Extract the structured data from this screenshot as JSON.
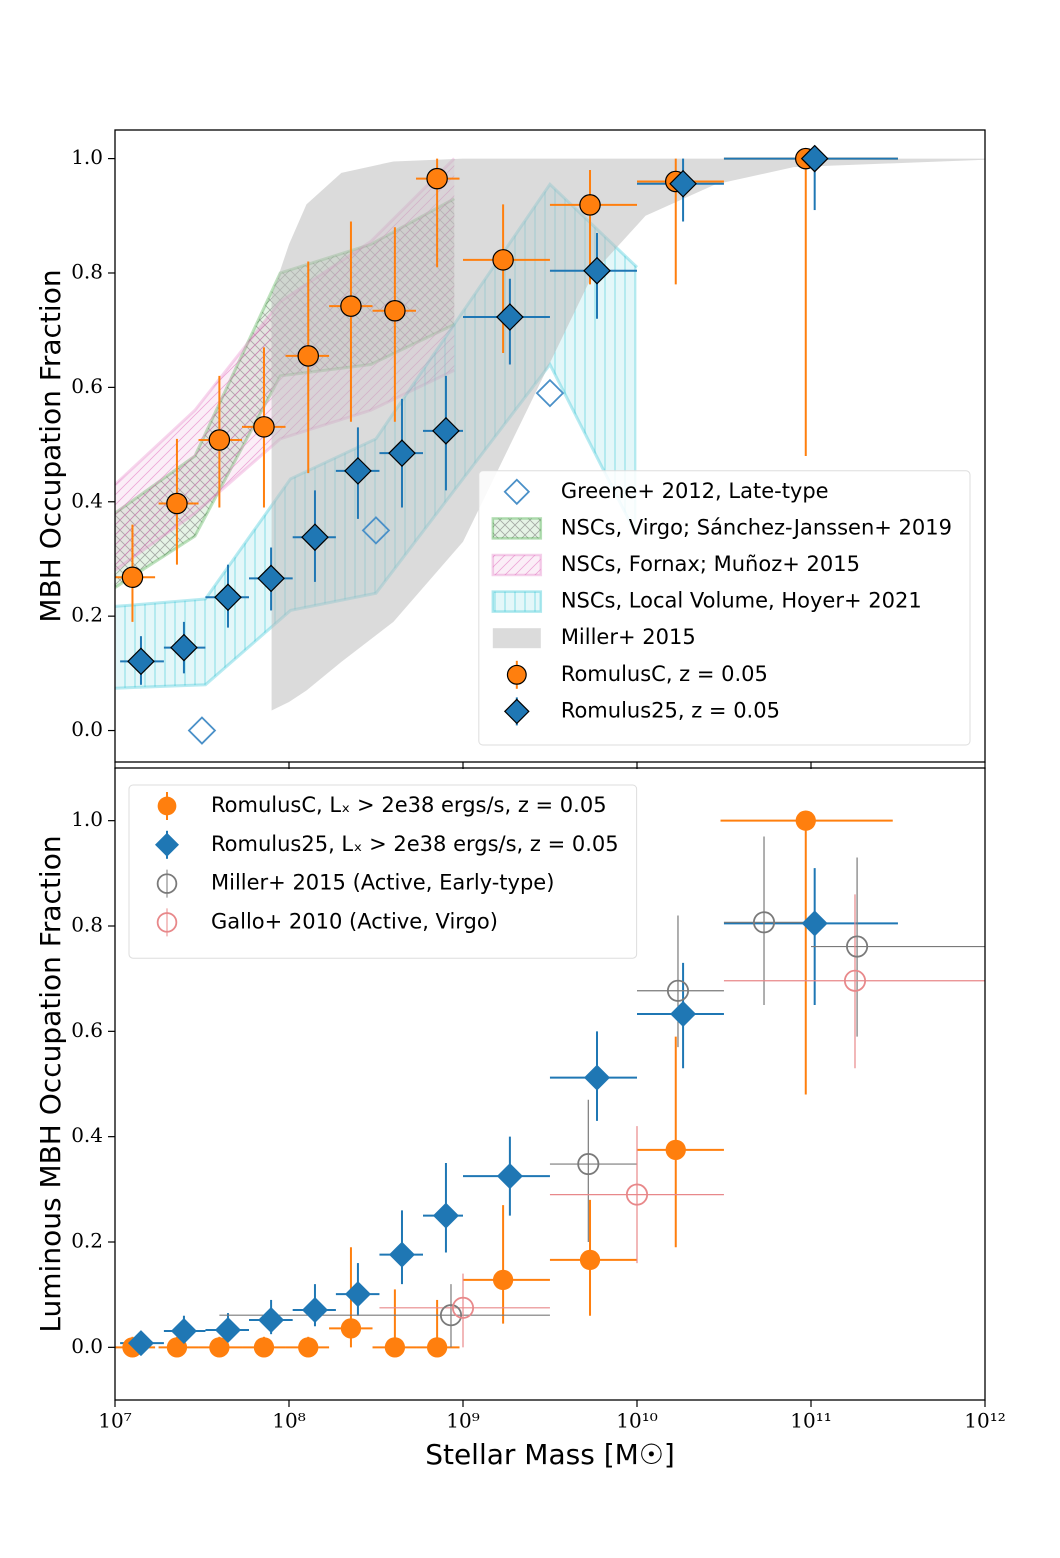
{
  "chart_data": [
    {
      "type": "scatter",
      "ylabel": "MBH Occupation Fraction",
      "xscale": "log",
      "xlim": [
        10000000.0,
        1000000000000.0
      ],
      "xticks": [
        10000000.0,
        100000000.0,
        1000000000.0,
        10000000000.0,
        100000000000.0,
        1000000000000.0
      ],
      "ylim": [
        -0.055,
        1.05
      ],
      "yticks": [
        {
          "value": 0,
          "label": "0.0"
        },
        0.2,
        0.4,
        0.6,
        0.8,
        {
          "value": 1,
          "label": "1.0"
        }
      ],
      "legend": "lower right",
      "series": [
        {
          "name": "Greene+ 2012, Late-type",
          "style": "points",
          "marker": "diamond",
          "filled": false,
          "color": "#4a90c8",
          "x": [
            31600000.0,
            316000000.0,
            3160000000.0
          ],
          "values": [
            0,
            0.35,
            0.59
          ]
        },
        {
          "name": "NSCs, Virgo; Sánchez-Janssen+ 2019",
          "style": "band",
          "hatch": "x",
          "color": "#2ca02c",
          "x": [
            10000000.0,
            28800000.0,
            89100000.0,
            295000000.0,
            891000000.0
          ],
          "lower": [
            0.25,
            0.34,
            0.62,
            0.64,
            0.71
          ],
          "upper": [
            0.38,
            0.48,
            0.8,
            0.85,
            0.93
          ]
        },
        {
          "name": "NSCs, Fornax; Muñoz+ 2015",
          "style": "band",
          "hatch": "/",
          "color": "#e377c2",
          "x": [
            10000000.0,
            28800000.0,
            89100000.0,
            295000000.0,
            891000000.0
          ],
          "lower": [
            0.28,
            0.38,
            0.51,
            0.56,
            0.63
          ],
          "upper": [
            0.43,
            0.56,
            0.75,
            0.855,
            1.0
          ]
        },
        {
          "name": "NSCs, Local Volume, Hoyer+ 2021",
          "style": "band",
          "hatch": "|",
          "color": "#17becf",
          "x": [
            10000000.0,
            33100000.0,
            102000000.0,
            316000000.0,
            3160000000.0,
            10000000000.0
          ],
          "lower": [
            0.074,
            0.08,
            0.21,
            0.24,
            0.64,
            0.34
          ],
          "upper": [
            0.217,
            0.23,
            0.44,
            0.51,
            0.955,
            0.81
          ]
        },
        {
          "name": "Miller+ 2015",
          "style": "band",
          "hatch": "",
          "color": "#bdbdbd",
          "x": [
            79400000.0,
            100000000.0,
            126000000.0,
            200000000.0,
            398000000.0,
            1000000000.0,
            2510000000.0,
            5620000000.0,
            11200000000.0,
            28200000000.0,
            79400000000.0,
            1000000000000.0
          ],
          "lower": [
            0.035,
            0.05,
            0.07,
            0.12,
            0.19,
            0.33,
            0.58,
            0.8,
            0.9,
            0.955,
            0.985,
            0.998
          ],
          "upper": [
            0.76,
            0.85,
            0.92,
            0.975,
            0.995,
            1.0,
            1.0,
            1.0,
            1.0,
            1.0,
            1.0,
            1.0
          ]
        },
        {
          "name": "RomulusC, z = 0.05",
          "style": "errorbar",
          "marker": "circle",
          "filled": true,
          "color": "#ff7f0e",
          "edgecolor": "#000000",
          "x": [
            12600000.0,
            22700000.0,
            39800000.0,
            71800000.0,
            129000000.0,
            227000000.0,
            406000000.0,
            710000000.0,
            1700000000.0,
            5370000000.0,
            16700000000.0,
            93300000000.0
          ],
          "values": [
            0.268,
            0.397,
            0.508,
            0.531,
            0.655,
            0.742,
            0.734,
            0.965,
            0.823,
            0.919,
            0.96,
            1.0
          ],
          "y_low": [
            0.19,
            0.29,
            0.39,
            0.39,
            0.45,
            0.54,
            0.54,
            0.81,
            0.66,
            0.78,
            0.78,
            0.48
          ],
          "y_high": [
            0.36,
            0.51,
            0.62,
            0.67,
            0.82,
            0.89,
            0.88,
            1.0,
            0.92,
            0.98,
            1.0,
            1.0
          ],
          "x_low": [
            10000000.0,
            17800000.0,
            30200000.0,
            53700000.0,
            95500000.0,
            170000000.0,
            302000000.0,
            537000000.0,
            1000000000.0,
            3160000000.0,
            10000000000.0,
            31600000000.0
          ],
          "x_high": [
            17000000.0,
            30200000.0,
            53700000.0,
            95500000.0,
            170000000.0,
            302000000.0,
            537000000.0,
            955000000.0,
            3160000000.0,
            10000000000.0,
            31600000000.0,
            316000000000.0
          ]
        },
        {
          "name": "Romulus25, z = 0.05",
          "style": "errorbar",
          "marker": "diamond",
          "filled": true,
          "color": "#1f77b4",
          "edgecolor": "#000000",
          "x": [
            14100000.0,
            24900000.0,
            44600000.0,
            78900000.0,
            141000000.0,
            249000000.0,
            446000000.0,
            798000000.0,
            1860000000.0,
            5890000000.0,
            18400000000.0,
            105000000000.0
          ],
          "values": [
            0.121,
            0.145,
            0.233,
            0.266,
            0.338,
            0.454,
            0.485,
            0.524,
            0.723,
            0.804,
            0.956,
            1.0
          ],
          "y_low": [
            0.08,
            0.1,
            0.18,
            0.21,
            0.26,
            0.37,
            0.39,
            0.42,
            0.64,
            0.72,
            0.89,
            0.91
          ],
          "y_high": [
            0.165,
            0.19,
            0.29,
            0.32,
            0.42,
            0.53,
            0.58,
            0.62,
            0.79,
            0.87,
            1.0,
            1.0
          ],
          "x_low": [
            10700000.0,
            19100000.0,
            33100000.0,
            58900000.0,
            105000000.0,
            186000000.0,
            331000000.0,
            589000000.0,
            1000000000.0,
            3160000000.0,
            10000000000.0,
            31600000000.0
          ],
          "x_high": [
            19100000.0,
            33100000.0,
            58900000.0,
            105000000.0,
            186000000.0,
            331000000.0,
            589000000.0,
            1000000000.0,
            3160000000.0,
            10000000000.0,
            31600000000.0,
            316000000000.0
          ]
        }
      ]
    },
    {
      "type": "scatter",
      "ylabel": "Luminous MBH Occupation Fraction",
      "xlabel": "Stellar Mass [M☉]",
      "xscale": "log",
      "xlim": [
        10000000.0,
        1000000000000.0
      ],
      "xticks": [
        {
          "value": 10000000.0,
          "label": "10⁷"
        },
        {
          "value": 100000000.0,
          "label": "10⁸"
        },
        {
          "value": 1000000000.0,
          "label": "10⁹"
        },
        {
          "value": 10000000000.0,
          "label": "10¹⁰"
        },
        {
          "value": 100000000000.0,
          "label": "10¹¹"
        },
        {
          "value": 1000000000000.0,
          "label": "10¹²"
        }
      ],
      "ylim": [
        -0.1,
        1.1
      ],
      "yticks": [
        {
          "value": 0,
          "label": "0.0"
        },
        0.2,
        0.4,
        0.6,
        0.8,
        {
          "value": 1,
          "label": "1.0"
        }
      ],
      "legend": "upper left",
      "series": [
        {
          "name": "RomulusC, Lₓ > 2e38 ergs/s, z = 0.05",
          "style": "errorbar",
          "marker": "circle",
          "filled": true,
          "color": "#ff7f0e",
          "x": [
            12600000.0,
            22700000.0,
            39800000.0,
            71800000.0,
            129000000.0,
            227000000.0,
            406000000.0,
            710000000.0,
            1700000000.0,
            5370000000.0,
            16700000000.0,
            93300000000.0
          ],
          "values": [
            0,
            0,
            0,
            0,
            0,
            0.036,
            0,
            0,
            0.128,
            0.166,
            0.375,
            1.0
          ],
          "y_low": [
            0,
            0,
            0,
            0,
            0,
            0,
            0,
            0,
            0.045,
            0.06,
            0.19,
            0.48
          ],
          "y_high": [
            0.02,
            0.02,
            0.02,
            0.02,
            0.02,
            0.19,
            0.11,
            0.09,
            0.27,
            0.28,
            0.59,
            1.0
          ],
          "x_low": [
            10000000.0,
            17800000.0,
            30200000.0,
            53700000.0,
            95500000.0,
            170000000.0,
            302000000.0,
            537000000.0,
            1000000000.0,
            3160000000.0,
            10000000000.0,
            30200000000.0
          ],
          "x_high": [
            17000000.0,
            30200000.0,
            53700000.0,
            95500000.0,
            170000000.0,
            302000000.0,
            537000000.0,
            955000000.0,
            3160000000.0,
            10000000000.0,
            31600000000.0,
            295000000000.0
          ]
        },
        {
          "name": "Romulus25, Lₓ > 2e38 ergs/s, z = 0.05",
          "style": "errorbar",
          "marker": "diamond",
          "filled": true,
          "color": "#1f77b4",
          "x": [
            14100000.0,
            24900000.0,
            44600000.0,
            78900000.0,
            141000000.0,
            249000000.0,
            446000000.0,
            798000000.0,
            1860000000.0,
            5890000000.0,
            18400000000.0,
            105000000000.0
          ],
          "values": [
            0.008,
            0.031,
            0.033,
            0.052,
            0.071,
            0.101,
            0.176,
            0.25,
            0.325,
            0.512,
            0.633,
            0.805
          ],
          "y_low": [
            0,
            0.01,
            0.01,
            0.025,
            0.04,
            0.06,
            0.12,
            0.18,
            0.25,
            0.43,
            0.53,
            0.65
          ],
          "y_high": [
            0.02,
            0.06,
            0.065,
            0.09,
            0.12,
            0.16,
            0.26,
            0.35,
            0.4,
            0.6,
            0.73,
            0.91
          ],
          "x_low": [
            10700000.0,
            19100000.0,
            33100000.0,
            58900000.0,
            105000000.0,
            186000000.0,
            331000000.0,
            589000000.0,
            1000000000.0,
            3160000000.0,
            10000000000.0,
            31600000000.0
          ],
          "x_high": [
            19100000.0,
            33100000.0,
            58900000.0,
            105000000.0,
            186000000.0,
            331000000.0,
            589000000.0,
            1000000000.0,
            3160000000.0,
            10000000000.0,
            31600000000.0,
            316000000000.0
          ]
        },
        {
          "name": "Miller+ 2015 (Active, Early-type)",
          "style": "errorbar",
          "marker": "circle",
          "filled": false,
          "color": "#7a7a7a",
          "x": [
            853000000.0,
            5250000000.0,
            17200000000.0,
            53700000000.0,
            184000000000.0
          ],
          "values": [
            0.061,
            0.348,
            0.677,
            0.807,
            0.761
          ],
          "y_low": [
            0,
            0.2,
            0.57,
            0.65,
            0.59
          ],
          "y_high": [
            0.12,
            0.47,
            0.82,
            0.97,
            0.93
          ],
          "x_low": [
            39800000.0,
            3160000000.0,
            10000000000.0,
            31600000000.0,
            100000000000.0
          ],
          "x_high": [
            3160000000.0,
            10000000000.0,
            31600000000.0,
            100000000000.0,
            1000000000000.0
          ]
        },
        {
          "name": "Gallo+ 2010 (Active, Virgo)",
          "style": "errorbar",
          "marker": "circle",
          "filled": false,
          "color": "#e8888a",
          "x": [
            1000000000.0,
            10000000000.0,
            179000000000.0
          ],
          "values": [
            0.075,
            0.29,
            0.696
          ],
          "y_low": [
            0,
            0.16,
            0.53
          ],
          "y_high": [
            0.14,
            0.42,
            0.86
          ],
          "x_low": [
            331000000.0,
            3160000000.0,
            31600000000.0
          ],
          "x_high": [
            3160000000.0,
            31600000000.0,
            1000000000000.0
          ]
        }
      ]
    }
  ]
}
